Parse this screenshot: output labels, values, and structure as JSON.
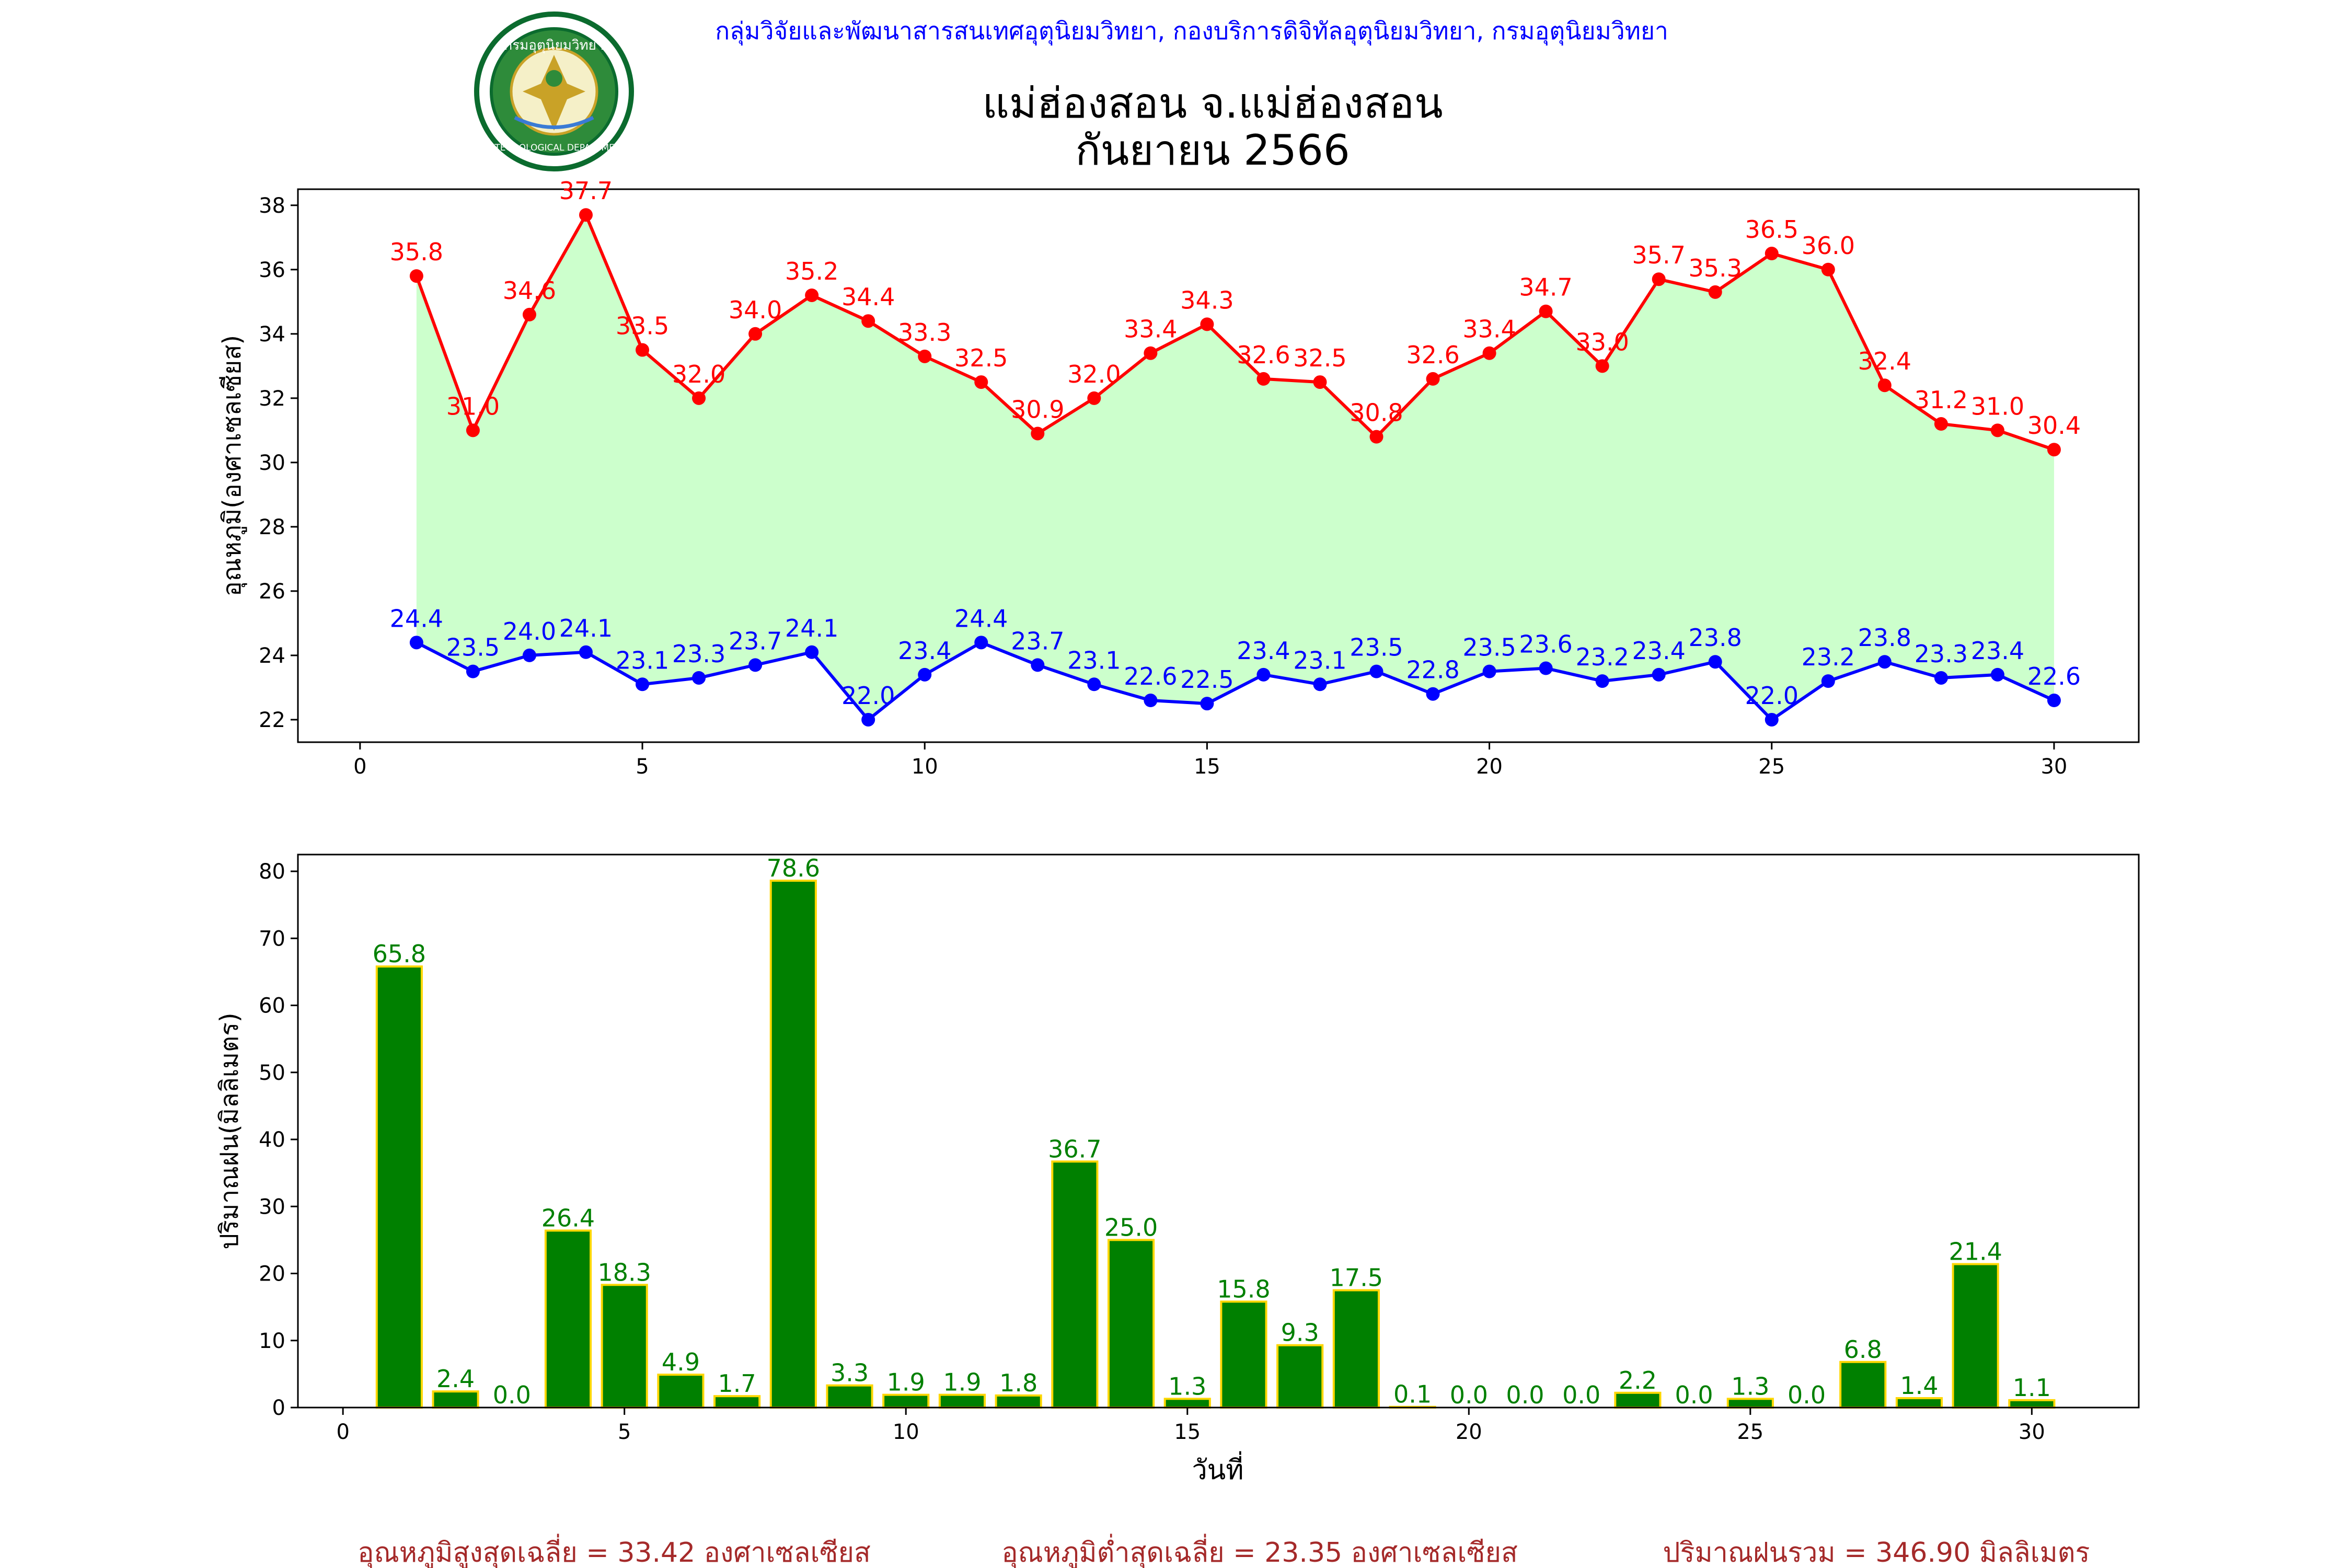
{
  "header": {
    "agency": "กลุ่มวิจัยและพัฒนาสารสนเทศอุตุนิยมวิทยา, กองบริการดิจิทัลอุตุนิยมวิทยา, กรมอุตุนิยมวิทยา",
    "title_line1": "แม่ฮ่องสอน จ.แม่ฮ่องสอน",
    "title_line2": "กันยายน 2566",
    "logo_text": "กรมอุตุนิยมวิทยา",
    "logo_ring_text": "METEOROLOGICAL DEPARTMENT"
  },
  "colors": {
    "max_line": "#ff0000",
    "min_line": "#0000ff",
    "fill": "#ccffcc",
    "rain_bar": "#008000",
    "rain_edge": "#ffd700",
    "summary_text": "#a52a2a",
    "agency_text": "#0000ff"
  },
  "chart_data": [
    {
      "type": "line",
      "ylabel": "อุณหภูมิ(องศาเซลเซียส)",
      "xlim": [
        -1.1,
        31.5
      ],
      "ylim": [
        21.3,
        38.5
      ],
      "xticks": [
        0,
        5,
        10,
        15,
        20,
        25,
        30
      ],
      "yticks": [
        22,
        24,
        26,
        28,
        30,
        32,
        34,
        36,
        38
      ],
      "fill_between": "max-min",
      "x": [
        1,
        2,
        3,
        4,
        5,
        6,
        7,
        8,
        9,
        10,
        11,
        12,
        13,
        14,
        15,
        16,
        17,
        18,
        19,
        20,
        21,
        22,
        23,
        24,
        25,
        26,
        27,
        28,
        29,
        30
      ],
      "series": [
        {
          "values": [
            35.8,
            31.0,
            34.6,
            37.7,
            33.5,
            32.0,
            34.0,
            35.2,
            34.4,
            33.3,
            32.5,
            30.9,
            32.0,
            33.4,
            34.3,
            32.6,
            32.5,
            30.8,
            32.6,
            33.4,
            34.7,
            33.0,
            35.7,
            35.3,
            36.5,
            36.0,
            32.4,
            31.2,
            31.0,
            30.4
          ]
        },
        {
          "values": [
            24.4,
            23.5,
            24.0,
            24.1,
            23.1,
            23.3,
            23.7,
            24.1,
            22.0,
            23.4,
            24.4,
            23.7,
            23.1,
            22.6,
            22.5,
            23.4,
            23.1,
            23.5,
            22.8,
            23.5,
            23.6,
            23.2,
            23.4,
            23.8,
            22.0,
            23.2,
            23.8,
            23.3,
            23.4,
            22.6
          ]
        }
      ]
    },
    {
      "type": "bar",
      "xlabel": "วันที่",
      "ylabel": "ปริมาณฝน(มิลลิเมตร)",
      "xlim": [
        -0.8,
        31.9
      ],
      "ylim": [
        0,
        82.5
      ],
      "xticks": [
        0,
        5,
        10,
        15,
        20,
        25,
        30
      ],
      "yticks": [
        0,
        10,
        20,
        30,
        40,
        50,
        60,
        70,
        80
      ],
      "categories": [
        1,
        2,
        3,
        4,
        5,
        6,
        7,
        8,
        9,
        10,
        11,
        12,
        13,
        14,
        15,
        16,
        17,
        18,
        19,
        20,
        21,
        22,
        23,
        24,
        25,
        26,
        27,
        28,
        29,
        30
      ],
      "values": [
        65.8,
        2.4,
        0.0,
        26.4,
        18.3,
        4.9,
        1.7,
        78.6,
        3.3,
        1.9,
        1.9,
        1.8,
        36.7,
        25.0,
        1.3,
        15.8,
        9.3,
        17.5,
        0.1,
        0.0,
        0.0,
        0.0,
        2.2,
        0.0,
        1.3,
        0.0,
        6.8,
        1.4,
        21.4,
        1.1
      ]
    }
  ],
  "summary": {
    "avg_max": "อุณหภูมิสูงสุดเฉลี่ย = 33.42 องศาเซลเซียส",
    "avg_min": "อุณหภูมิต่ำสุดเฉลี่ย = 23.35 องศาเซลเซียส",
    "total_rain": "ปริมาณฝนรวม = 346.90 มิลลิเมตร"
  }
}
